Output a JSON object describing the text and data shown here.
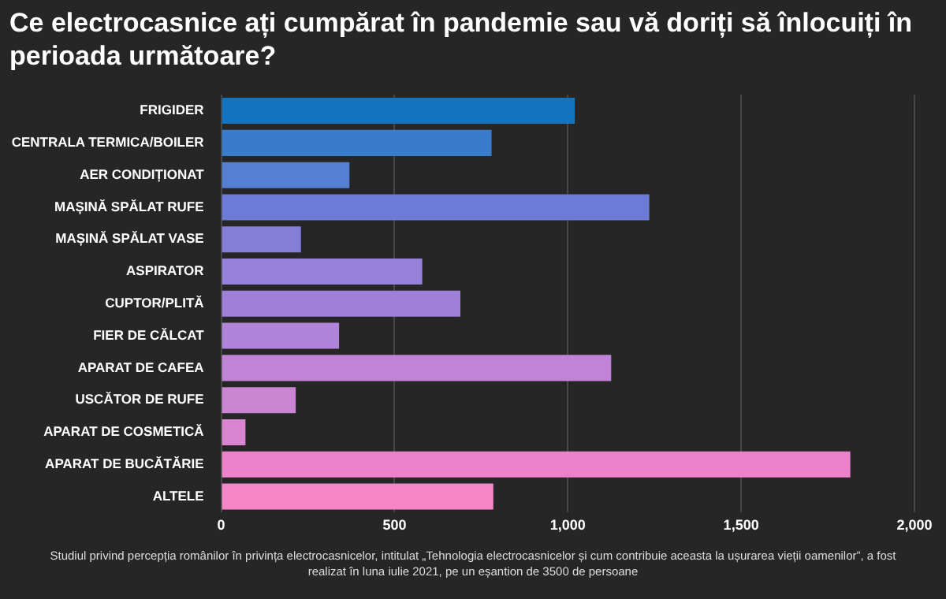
{
  "chart_data": {
    "type": "bar",
    "orientation": "horizontal",
    "title": "Ce electrocasnice ați cumpărat în pandemie sau vă doriți să înlocuiți în perioada următoare?",
    "categories": [
      "FRIGIDER",
      "CENTRALA TERMICA/BOILER",
      "AER CONDIȚIONAT",
      "MAȘINĂ SPĂLAT RUFE",
      "MAȘINĂ SPĂLAT VASE",
      "ASPIRATOR",
      "CUPTOR/PLITĂ",
      "FIER DE CĂLCAT",
      "APARAT DE CAFEA",
      "USCĂTOR DE RUFE",
      "APARAT DE COSMETICĂ",
      "APARAT DE BUCĂTĂRIE",
      "ALTELE"
    ],
    "values": [
      1020,
      780,
      370,
      1235,
      230,
      580,
      690,
      340,
      1125,
      215,
      70,
      1815,
      785
    ],
    "colors": [
      "#1273bf",
      "#3a7bcc",
      "#557fd0",
      "#6c7bd6",
      "#857ed8",
      "#9580da",
      "#a07fd9",
      "#b084d9",
      "#c183d6",
      "#cc85d3",
      "#d884d0",
      "#ec82cc",
      "#f586c8"
    ],
    "xlim": [
      0,
      2000
    ],
    "xticks": [
      0,
      {
        "value": 500,
        "label": "500"
      },
      {
        "value": 1000,
        "label": "1,000"
      },
      {
        "value": 1500,
        "label": "1,500"
      },
      {
        "value": 2000,
        "label": "2,000"
      }
    ],
    "grid": "x",
    "legend": false,
    "annotations": [
      "Studiul privind percepția românilor în privința electrocasnicelor, intitulat „Tehnologia electrocasnicelor și cum contribuie aceasta la ușurarea vieții oamenilor”, a fost realizat în luna iulie 2021, pe un eșantion de 3500 de persoane"
    ]
  }
}
